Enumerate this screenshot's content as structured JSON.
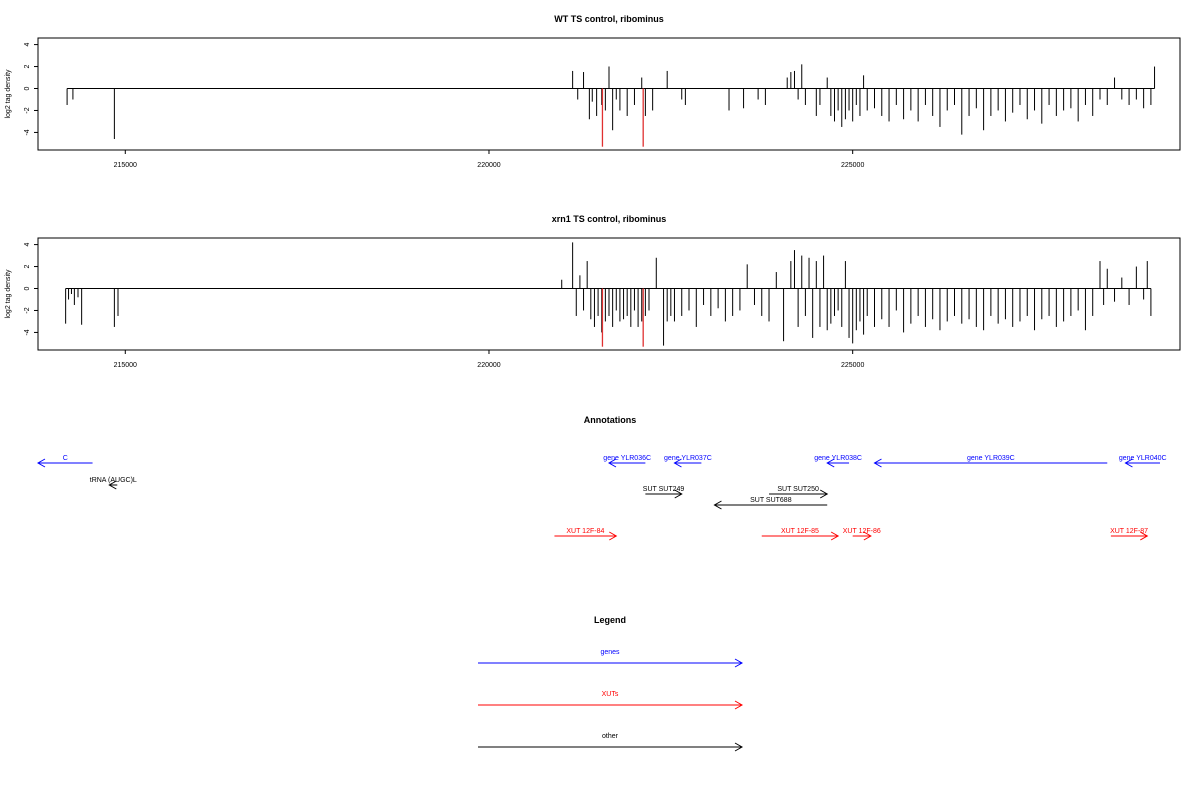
{
  "chart_data": [
    {
      "type": "bar",
      "title": "WT TS control, ribominus",
      "xlabel": "",
      "ylabel": "log2 tag density",
      "xlim": [
        213800,
        229500
      ],
      "ylim": [
        -5.6,
        4.6
      ],
      "xticks": [
        215000,
        220000,
        225000
      ],
      "xtick_labels": [
        "215000",
        "220000",
        "225000"
      ],
      "yticks": [
        -4,
        -2,
        0,
        2,
        4
      ],
      "ytick_labels": [
        "-4",
        "-2",
        "0",
        "2",
        "4"
      ],
      "highlight_color": "#e03030",
      "bar_color": "#000000",
      "series": [
        {
          "x": [
            214200,
            214280,
            214850,
            221150,
            221220,
            221300,
            221380,
            221420,
            221480,
            221550,
            221600,
            221650,
            221700,
            221750,
            221800,
            221900,
            222000,
            222100,
            222150,
            222250,
            222450,
            222650,
            222700,
            223300,
            223500,
            223700,
            223800,
            224100,
            224150,
            224200,
            224250,
            224300,
            224350,
            224500,
            224550,
            224650,
            224700,
            224750,
            224800,
            224850,
            224900,
            224950,
            225000,
            225050,
            225100,
            225150,
            225200,
            225300,
            225400,
            225500,
            225600,
            225700,
            225800,
            225900,
            226000,
            226100,
            226200,
            226300,
            226400,
            226500,
            226600,
            226700,
            226800,
            226900,
            227000,
            227100,
            227200,
            227300,
            227400,
            227500,
            227600,
            227700,
            227800,
            227900,
            228000,
            228100,
            228200,
            228300,
            228400,
            228500,
            228600,
            228700,
            228800,
            228900,
            229000,
            229100,
            229150
          ],
          "values": [
            -1.5,
            -1.0,
            -4.6,
            1.6,
            -1.0,
            1.5,
            -2.8,
            -1.2,
            -2.5,
            -1.5,
            -2.0,
            2.0,
            -3.8,
            -1.0,
            -2.0,
            -2.5,
            -1.5,
            1.0,
            -2.5,
            -2.0,
            1.6,
            -1.0,
            -1.5,
            -2.0,
            -1.8,
            -1.0,
            -1.5,
            1.0,
            1.5,
            1.6,
            -1.0,
            2.2,
            -1.5,
            -2.5,
            -1.5,
            1.0,
            -2.5,
            -3.0,
            -2.0,
            -3.5,
            -2.8,
            -2.0,
            -3.0,
            -1.5,
            -2.5,
            1.2,
            -2.0,
            -1.8,
            -2.5,
            -3.0,
            -1.5,
            -2.8,
            -2.0,
            -3.0,
            -1.5,
            -2.5,
            -3.5,
            -2.0,
            -1.5,
            -4.2,
            -2.5,
            -1.8,
            -3.8,
            -2.5,
            -2.0,
            -3.0,
            -2.2,
            -1.5,
            -2.8,
            -2.0,
            -3.2,
            -1.5,
            -2.5,
            -2.0,
            -1.8,
            -3.0,
            -1.5,
            -2.5,
            -1.0,
            -1.5,
            1.0,
            -1.0,
            -1.5,
            -1.0,
            -1.8,
            -1.5,
            2.0
          ]
        },
        {
          "x": [
            221560,
            222120
          ],
          "values": [
            -5.3,
            -5.3
          ],
          "highlight": true
        }
      ]
    },
    {
      "type": "bar",
      "title": "xrn1 TS control, ribominus",
      "xlabel": "",
      "ylabel": "log2 tag density",
      "xlim": [
        213800,
        229500
      ],
      "ylim": [
        -5.6,
        4.6
      ],
      "xticks": [
        215000,
        220000,
        225000
      ],
      "xtick_labels": [
        "215000",
        "220000",
        "225000"
      ],
      "yticks": [
        -4,
        -2,
        0,
        2,
        4
      ],
      "ytick_labels": [
        "-4",
        "-2",
        "0",
        "2",
        "4"
      ],
      "highlight_color": "#e03030",
      "bar_color": "#000000",
      "series": [
        {
          "x": [
            214180,
            214220,
            214260,
            214300,
            214350,
            214400,
            214850,
            214900,
            221000,
            221150,
            221200,
            221250,
            221300,
            221350,
            221400,
            221450,
            221500,
            221550,
            221600,
            221650,
            221700,
            221750,
            221800,
            221850,
            221900,
            221950,
            222000,
            222050,
            222100,
            222150,
            222200,
            222300,
            222400,
            222450,
            222500,
            222550,
            222650,
            222750,
            222850,
            222950,
            223050,
            223150,
            223250,
            223350,
            223450,
            223550,
            223650,
            223750,
            223850,
            223950,
            224050,
            224150,
            224200,
            224250,
            224300,
            224350,
            224400,
            224450,
            224500,
            224550,
            224600,
            224650,
            224700,
            224750,
            224800,
            224850,
            224900,
            224950,
            225000,
            225050,
            225100,
            225150,
            225200,
            225300,
            225400,
            225500,
            225600,
            225700,
            225800,
            225900,
            226000,
            226100,
            226200,
            226300,
            226400,
            226500,
            226600,
            226700,
            226800,
            226900,
            227000,
            227100,
            227200,
            227300,
            227400,
            227500,
            227600,
            227700,
            227800,
            227900,
            228000,
            228100,
            228200,
            228300,
            228400,
            228450,
            228500,
            228600,
            228700,
            228800,
            228900,
            229000,
            229050,
            229100
          ],
          "values": [
            -3.2,
            -1.0,
            -0.5,
            -1.5,
            -0.8,
            -3.3,
            -3.5,
            -2.5,
            0.8,
            4.2,
            -2.5,
            1.2,
            -2.0,
            2.5,
            -2.8,
            -3.5,
            -2.5,
            -4.0,
            -3.0,
            -2.5,
            -3.5,
            -2.0,
            -3.0,
            -2.8,
            -2.5,
            -3.5,
            -2.0,
            -3.5,
            -3.0,
            -2.5,
            -2.0,
            2.8,
            -5.2,
            -3.0,
            -2.5,
            -3.0,
            -2.5,
            -2.0,
            -3.5,
            -1.5,
            -2.5,
            -1.8,
            -3.0,
            -2.5,
            -2.0,
            2.2,
            -1.5,
            -2.5,
            -3.0,
            1.5,
            -4.8,
            2.5,
            3.5,
            -3.5,
            3.0,
            -2.5,
            2.8,
            -4.5,
            2.5,
            -3.5,
            3.0,
            -3.8,
            -3.2,
            -2.5,
            -2.0,
            -3.5,
            2.5,
            -4.5,
            -5.0,
            -3.8,
            -3.0,
            -4.2,
            -2.5,
            -3.5,
            -2.8,
            -3.5,
            -2.0,
            -4.0,
            -3.2,
            -2.5,
            -3.5,
            -2.8,
            -3.8,
            -3.0,
            -2.5,
            -3.2,
            -2.8,
            -3.5,
            -3.8,
            -2.5,
            -3.2,
            -2.8,
            -3.5,
            -3.0,
            -2.5,
            -3.8,
            -2.8,
            -2.5,
            -3.5,
            -3.0,
            -2.5,
            -2.0,
            -3.8,
            -2.5,
            2.5,
            -1.5,
            1.8,
            -1.2,
            1.0,
            -1.5,
            2.0,
            -1.0,
            2.5,
            -2.5
          ]
        },
        {
          "x": [
            221560,
            222120
          ],
          "values": [
            -5.3,
            -5.3
          ],
          "highlight": true
        }
      ]
    }
  ],
  "annotations": {
    "title": "Annotations",
    "genes_color": "#0000ff",
    "xuts_color": "#ff0000",
    "other_color": "#000000",
    "items": [
      {
        "label": "C",
        "kind": "gene",
        "start": 213800,
        "end": 214550,
        "strand": "-",
        "row": 0
      },
      {
        "label": "gene YLR036C",
        "kind": "gene",
        "start": 221650,
        "end": 222150,
        "strand": "-",
        "row": 0
      },
      {
        "label": "gene YLR037C",
        "kind": "gene",
        "start": 222550,
        "end": 222920,
        "strand": "-",
        "row": 0
      },
      {
        "label": "gene YLR038C",
        "kind": "gene",
        "start": 224650,
        "end": 224950,
        "strand": "-",
        "row": 0
      },
      {
        "label": "gene YLR039C",
        "kind": "gene",
        "start": 225300,
        "end": 228500,
        "strand": "-",
        "row": 0
      },
      {
        "label": "gene YLR040C",
        "kind": "gene",
        "start": 228750,
        "end": 229400,
        "strand": "-",
        "row": 0
      },
      {
        "label": "tRNA (AUGC)L",
        "kind": "other",
        "start": 214780,
        "end": 214850,
        "strand": "-",
        "row": 1
      },
      {
        "label": "SUT SUT249",
        "kind": "other",
        "start": 222150,
        "end": 222650,
        "strand": "+",
        "row": 2
      },
      {
        "label": "SUT SUT250",
        "kind": "other",
        "start": 223850,
        "end": 224650,
        "strand": "+",
        "row": 2
      },
      {
        "label": "SUT SUT688",
        "kind": "other",
        "start": 223100,
        "end": 224650,
        "strand": "-",
        "row": 3
      },
      {
        "label": "XUT 12F-84",
        "kind": "xut",
        "start": 220900,
        "end": 221750,
        "strand": "+",
        "row": 4
      },
      {
        "label": "XUT 12F-85",
        "kind": "xut",
        "start": 223750,
        "end": 224800,
        "strand": "+",
        "row": 4
      },
      {
        "label": "XUT 12F-86",
        "kind": "xut",
        "start": 225000,
        "end": 225250,
        "strand": "+",
        "row": 4
      },
      {
        "label": "XUT 12F-87",
        "kind": "xut",
        "start": 228550,
        "end": 229050,
        "strand": "+",
        "row": 4
      }
    ]
  },
  "legend": {
    "title": "Legend",
    "items": [
      {
        "label": "genes",
        "color": "#0000ff"
      },
      {
        "label": "XUTs",
        "color": "#ff0000"
      },
      {
        "label": "other",
        "color": "#000000"
      }
    ]
  }
}
